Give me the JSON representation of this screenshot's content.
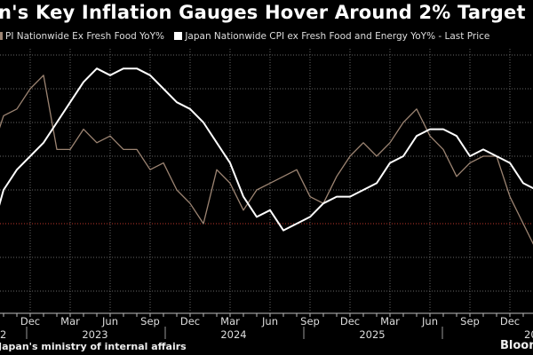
{
  "title": "n's Key Inflation Gauges Hover Around 2% Target",
  "legend": [
    {
      "label": "PI Nationwide Ex Fresh Food YoY%",
      "color": "#9c8472"
    },
    {
      "label": "Japan Nationwide CPI ex Fresh Food and Energy YoY% - Last Price",
      "color": "#ffffff"
    }
  ],
  "source": "Japan's ministry of internal affairs",
  "brand": "Bloon",
  "chart_data": {
    "type": "line",
    "x": [
      "2022-09",
      "2022-10",
      "2022-11",
      "2022-12",
      "2023-01",
      "2023-02",
      "2023-03",
      "2023-04",
      "2023-05",
      "2023-06",
      "2023-07",
      "2023-08",
      "2023-09",
      "2023-10",
      "2023-11",
      "2023-12",
      "2024-01",
      "2024-02",
      "2024-03",
      "2024-04",
      "2024-05",
      "2024-06",
      "2024-07",
      "2024-08",
      "2024-09",
      "2024-10",
      "2024-11",
      "2024-12",
      "2025-01",
      "2025-02",
      "2025-03",
      "2025-04",
      "2025-05",
      "2025-06",
      "2025-07",
      "2025-08",
      "2025-09",
      "2025-10",
      "2025-11",
      "2025-12",
      "2026-01",
      "2026-02"
    ],
    "series": [
      {
        "name": "PI Nationwide Ex Fresh Food YoY%",
        "color": "#9c8472",
        "values": [
          3.0,
          3.6,
          3.7,
          4.0,
          4.2,
          3.1,
          3.1,
          3.4,
          3.2,
          3.3,
          3.1,
          3.1,
          2.8,
          2.9,
          2.5,
          2.3,
          2.0,
          2.8,
          2.6,
          2.2,
          2.5,
          2.6,
          2.7,
          2.8,
          2.4,
          2.3,
          2.7,
          3.0,
          3.2,
          3.0,
          3.2,
          3.5,
          3.7,
          3.3,
          3.1,
          2.7,
          2.9,
          3.0,
          3.0,
          2.4,
          2.0,
          1.6
        ]
      },
      {
        "name": "Japan Nationwide CPI ex Fresh Food and Energy YoY% - Last Price",
        "color": "#ffffff",
        "values": [
          1.8,
          2.5,
          2.8,
          3.0,
          3.2,
          3.5,
          3.8,
          4.1,
          4.3,
          4.2,
          4.3,
          4.3,
          4.2,
          4.0,
          3.8,
          3.7,
          3.5,
          3.2,
          2.9,
          2.4,
          2.1,
          2.2,
          1.9,
          2.0,
          2.1,
          2.3,
          2.4,
          2.4,
          2.5,
          2.6,
          2.9,
          3.0,
          3.3,
          3.4,
          3.4,
          3.3,
          3.0,
          3.1,
          3.0,
          2.9,
          2.6,
          2.5
        ]
      }
    ],
    "month_ticks": [
      "Dec",
      "Mar",
      "Jun",
      "Sep",
      "Dec",
      "Mar",
      "Jun",
      "Sep",
      "Dec",
      "Mar",
      "Jun",
      "Sep",
      "Dec"
    ],
    "year_ticks": [
      "2",
      "2023",
      "2024",
      "2025",
      "20"
    ],
    "target_line": 2.0,
    "target_color": "#c0392b",
    "ylim": [
      0.7,
      4.5
    ],
    "y_grid_step": 0.5,
    "grid": true,
    "legend_position": "top"
  }
}
